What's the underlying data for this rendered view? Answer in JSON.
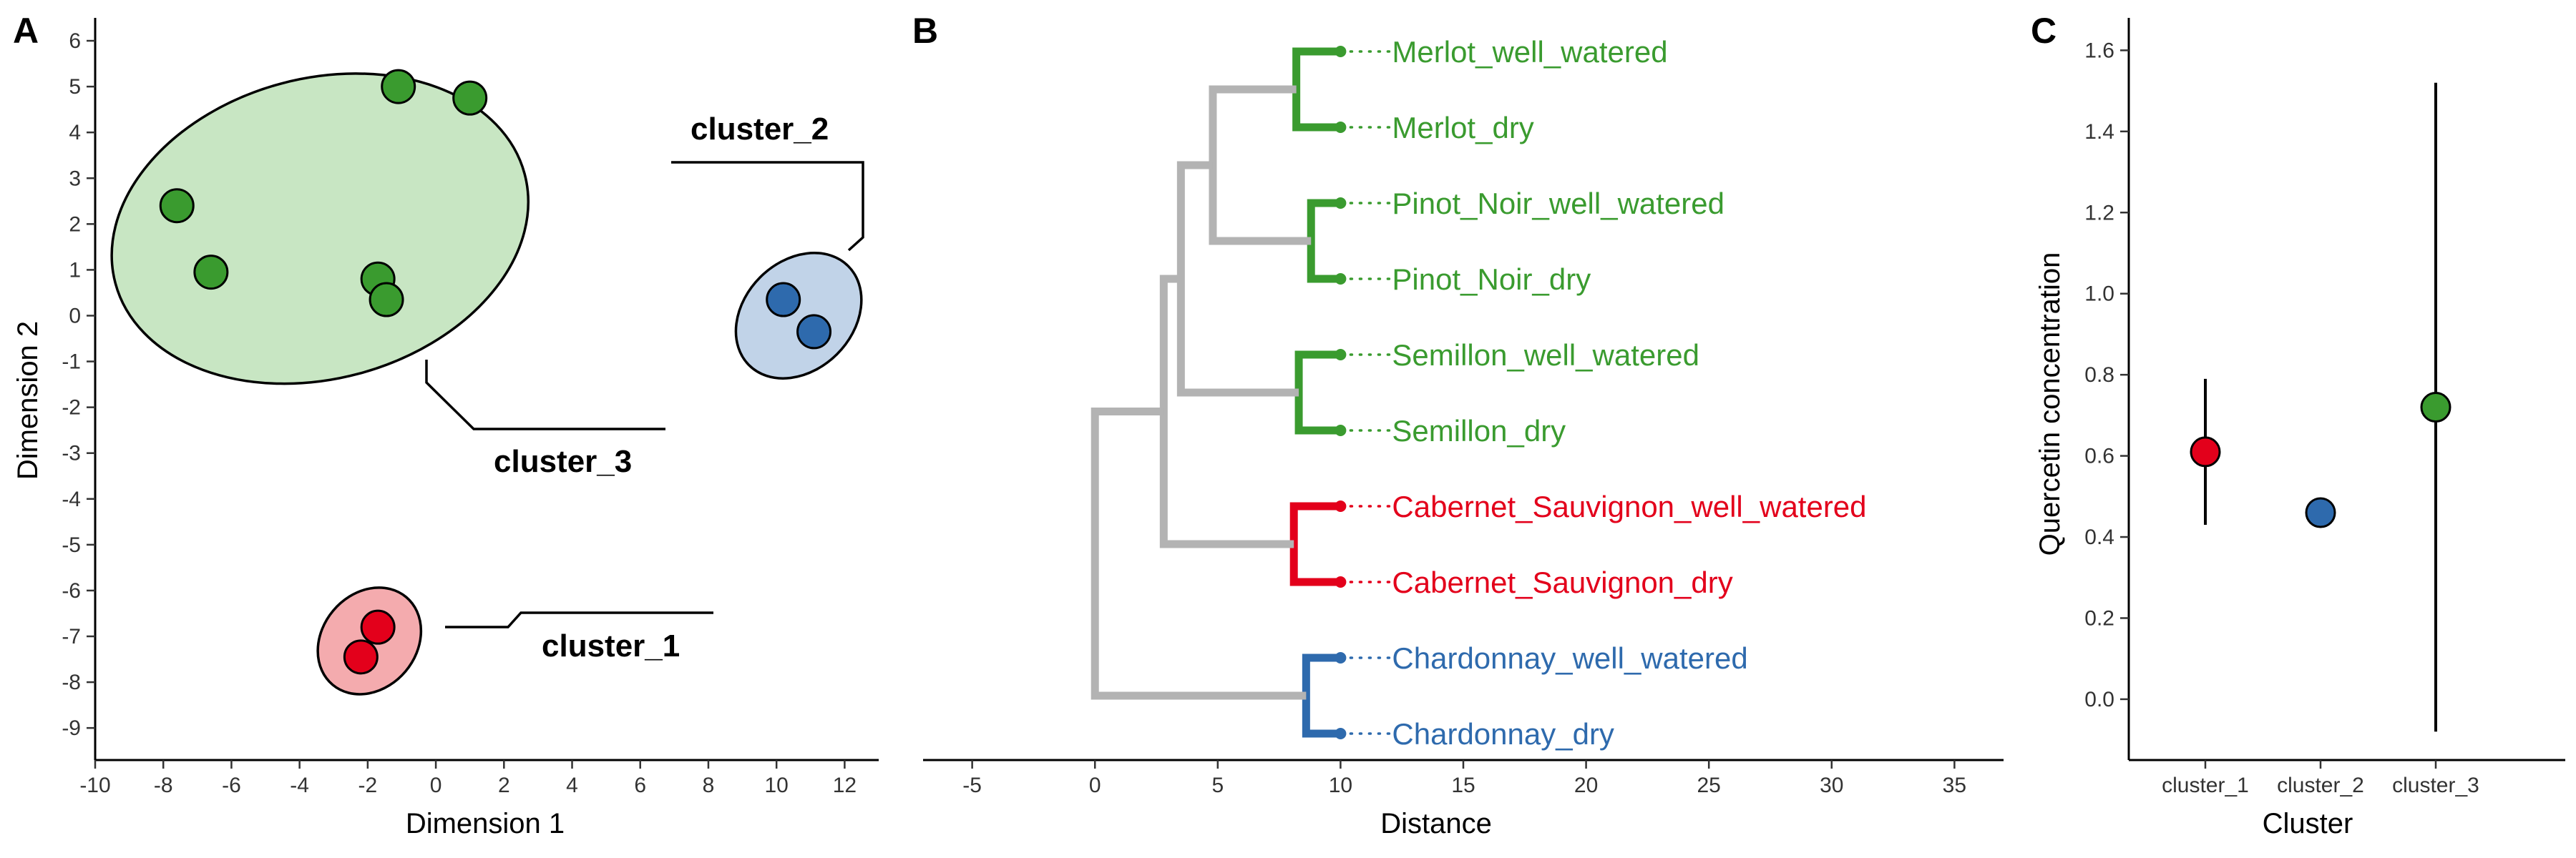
{
  "colors": {
    "cluster_1": "#e3001b",
    "cluster_2": "#2e6aad",
    "cluster_3": "#3a9b2f",
    "cluster_1_fill": "#f4abae",
    "cluster_2_fill": "#c1d3e8",
    "cluster_3_fill": "#c8e6c3",
    "tree_gray": "#b3b3b3"
  },
  "chart_data": [
    {
      "panel": "A",
      "type": "scatter",
      "xlabel": "Dimension 1",
      "ylabel": "Dimension 2",
      "xlim": [
        -10,
        13
      ],
      "ylim": [
        -9.7,
        6.5
      ],
      "xticks": [
        -10,
        -8,
        -6,
        -4,
        -2,
        0,
        2,
        4,
        6,
        8,
        10,
        12
      ],
      "yticks": [
        6,
        5,
        4,
        3,
        2,
        1,
        0,
        -1,
        -2,
        -3,
        -4,
        -5,
        -6,
        -7,
        -8,
        -9
      ],
      "points": [
        {
          "x": -7.6,
          "y": 2.4,
          "cluster": "cluster_3"
        },
        {
          "x": -6.6,
          "y": 0.95,
          "cluster": "cluster_3"
        },
        {
          "x": -1.1,
          "y": 5.0,
          "cluster": "cluster_3"
        },
        {
          "x": 1.0,
          "y": 4.75,
          "cluster": "cluster_3"
        },
        {
          "x": -1.7,
          "y": 0.8,
          "cluster": "cluster_3"
        },
        {
          "x": -1.45,
          "y": 0.35,
          "cluster": "cluster_3"
        },
        {
          "x": 10.2,
          "y": 0.35,
          "cluster": "cluster_2"
        },
        {
          "x": 11.1,
          "y": -0.35,
          "cluster": "cluster_2"
        },
        {
          "x": -1.7,
          "y": -6.8,
          "cluster": "cluster_1"
        },
        {
          "x": -2.2,
          "y": -7.45,
          "cluster": "cluster_1"
        }
      ],
      "cluster_labels": [
        "cluster_3",
        "cluster_2",
        "cluster_1"
      ]
    },
    {
      "panel": "B",
      "type": "dendrogram",
      "xlabel": "Distance",
      "xlim": [
        -7,
        37
      ],
      "xticks": [
        -5,
        0,
        5,
        10,
        15,
        20,
        25,
        30,
        35
      ],
      "leaves": [
        {
          "label": "Merlot_well_watered",
          "cluster": "cluster_3"
        },
        {
          "label": "Merlot_dry",
          "cluster": "cluster_3"
        },
        {
          "label": "Pinot_Noir_well_watered",
          "cluster": "cluster_3"
        },
        {
          "label": "Pinot_Noir_dry",
          "cluster": "cluster_3"
        },
        {
          "label": "Semillon_well_watered",
          "cluster": "cluster_3"
        },
        {
          "label": "Semillon_dry",
          "cluster": "cluster_3"
        },
        {
          "label": "Cabernet_Sauvignon_well_watered",
          "cluster": "cluster_1"
        },
        {
          "label": "Cabernet_Sauvignon_dry",
          "cluster": "cluster_1"
        },
        {
          "label": "Chardonnay_well_watered",
          "cluster": "cluster_2"
        },
        {
          "label": "Chardonnay_dry",
          "cluster": "cluster_2"
        }
      ],
      "merges": [
        {
          "height": 1.8,
          "left": "Merlot_well_watered",
          "right": "Merlot_dry",
          "cluster": "cluster_3"
        },
        {
          "height": 1.2,
          "left": "Pinot_Noir_well_watered",
          "right": "Pinot_Noir_dry",
          "cluster": "cluster_3"
        },
        {
          "height": 1.7,
          "left": "Semillon_well_watered",
          "right": "Semillon_dry",
          "cluster": "cluster_3"
        },
        {
          "height": 1.9,
          "left": "Cabernet_Sauvignon_well_watered",
          "right": "Cabernet_Sauvignon_dry",
          "cluster": "cluster_1"
        },
        {
          "height": 1.4,
          "left": "Chardonnay_well_watered",
          "right": "Chardonnay_dry",
          "cluster": "cluster_2"
        },
        {
          "height": 5.2,
          "left": "Merlot",
          "right": "Pinot_Noir"
        },
        {
          "height": 6.5,
          "left": "Merlot+Pinot_Noir",
          "right": "Semillon"
        },
        {
          "height": 7.2,
          "left": "Merlot+Pinot_Noir+Semillon",
          "right": "Cabernet_Sauvignon"
        },
        {
          "height": 10.0,
          "left": "Merlot+Pinot_Noir+Semillon+Cabernet_Sauvignon",
          "right": "Chardonnay"
        }
      ]
    },
    {
      "panel": "C",
      "type": "pointrange",
      "xlabel": "Cluster",
      "ylabel": "Quercetin concentration",
      "ylim": [
        -0.15,
        1.68
      ],
      "yticks": [
        0.0,
        0.2,
        0.4,
        0.6,
        0.8,
        1.0,
        1.2,
        1.4,
        1.6
      ],
      "categories": [
        "cluster_1",
        "cluster_2",
        "cluster_3"
      ],
      "values": [
        0.61,
        0.46,
        0.72
      ],
      "lower": [
        0.43,
        0.46,
        -0.08
      ],
      "upper": [
        0.79,
        0.46,
        1.52
      ]
    }
  ]
}
